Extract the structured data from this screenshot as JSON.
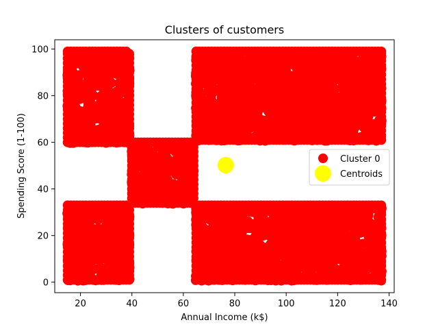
{
  "chart_data": {
    "type": "scatter",
    "title": "Clusters of customers",
    "xlabel": "Annual Income (k$)",
    "ylabel": "Spending Score (1-100)",
    "xlim": [
      10,
      142
    ],
    "ylim": [
      -4.5,
      104
    ],
    "xticks": [
      20,
      40,
      60,
      80,
      100,
      120,
      140
    ],
    "yticks": [
      0,
      20,
      40,
      60,
      80,
      100
    ],
    "grid": false,
    "legend_position": "center-right",
    "series": [
      {
        "name": "Cluster 0",
        "color": "#ff0000",
        "marker": "circle",
        "regions": [
          {
            "x": [
              15,
              39
            ],
            "y": [
              60,
              99
            ]
          },
          {
            "x": [
              15,
              39
            ],
            "y": [
              1,
              33
            ]
          },
          {
            "x": [
              40,
              64
            ],
            "y": [
              34,
              60
            ]
          },
          {
            "x": [
              65,
              137
            ],
            "y": [
              61,
              99
            ]
          },
          {
            "x": [
              65,
              137
            ],
            "y": [
              1,
              33
            ]
          }
        ]
      },
      {
        "name": "Centroids",
        "color": "#ffff00",
        "marker": "circle",
        "points": [
          {
            "x": 76.5,
            "y": 50.2
          }
        ]
      }
    ]
  }
}
